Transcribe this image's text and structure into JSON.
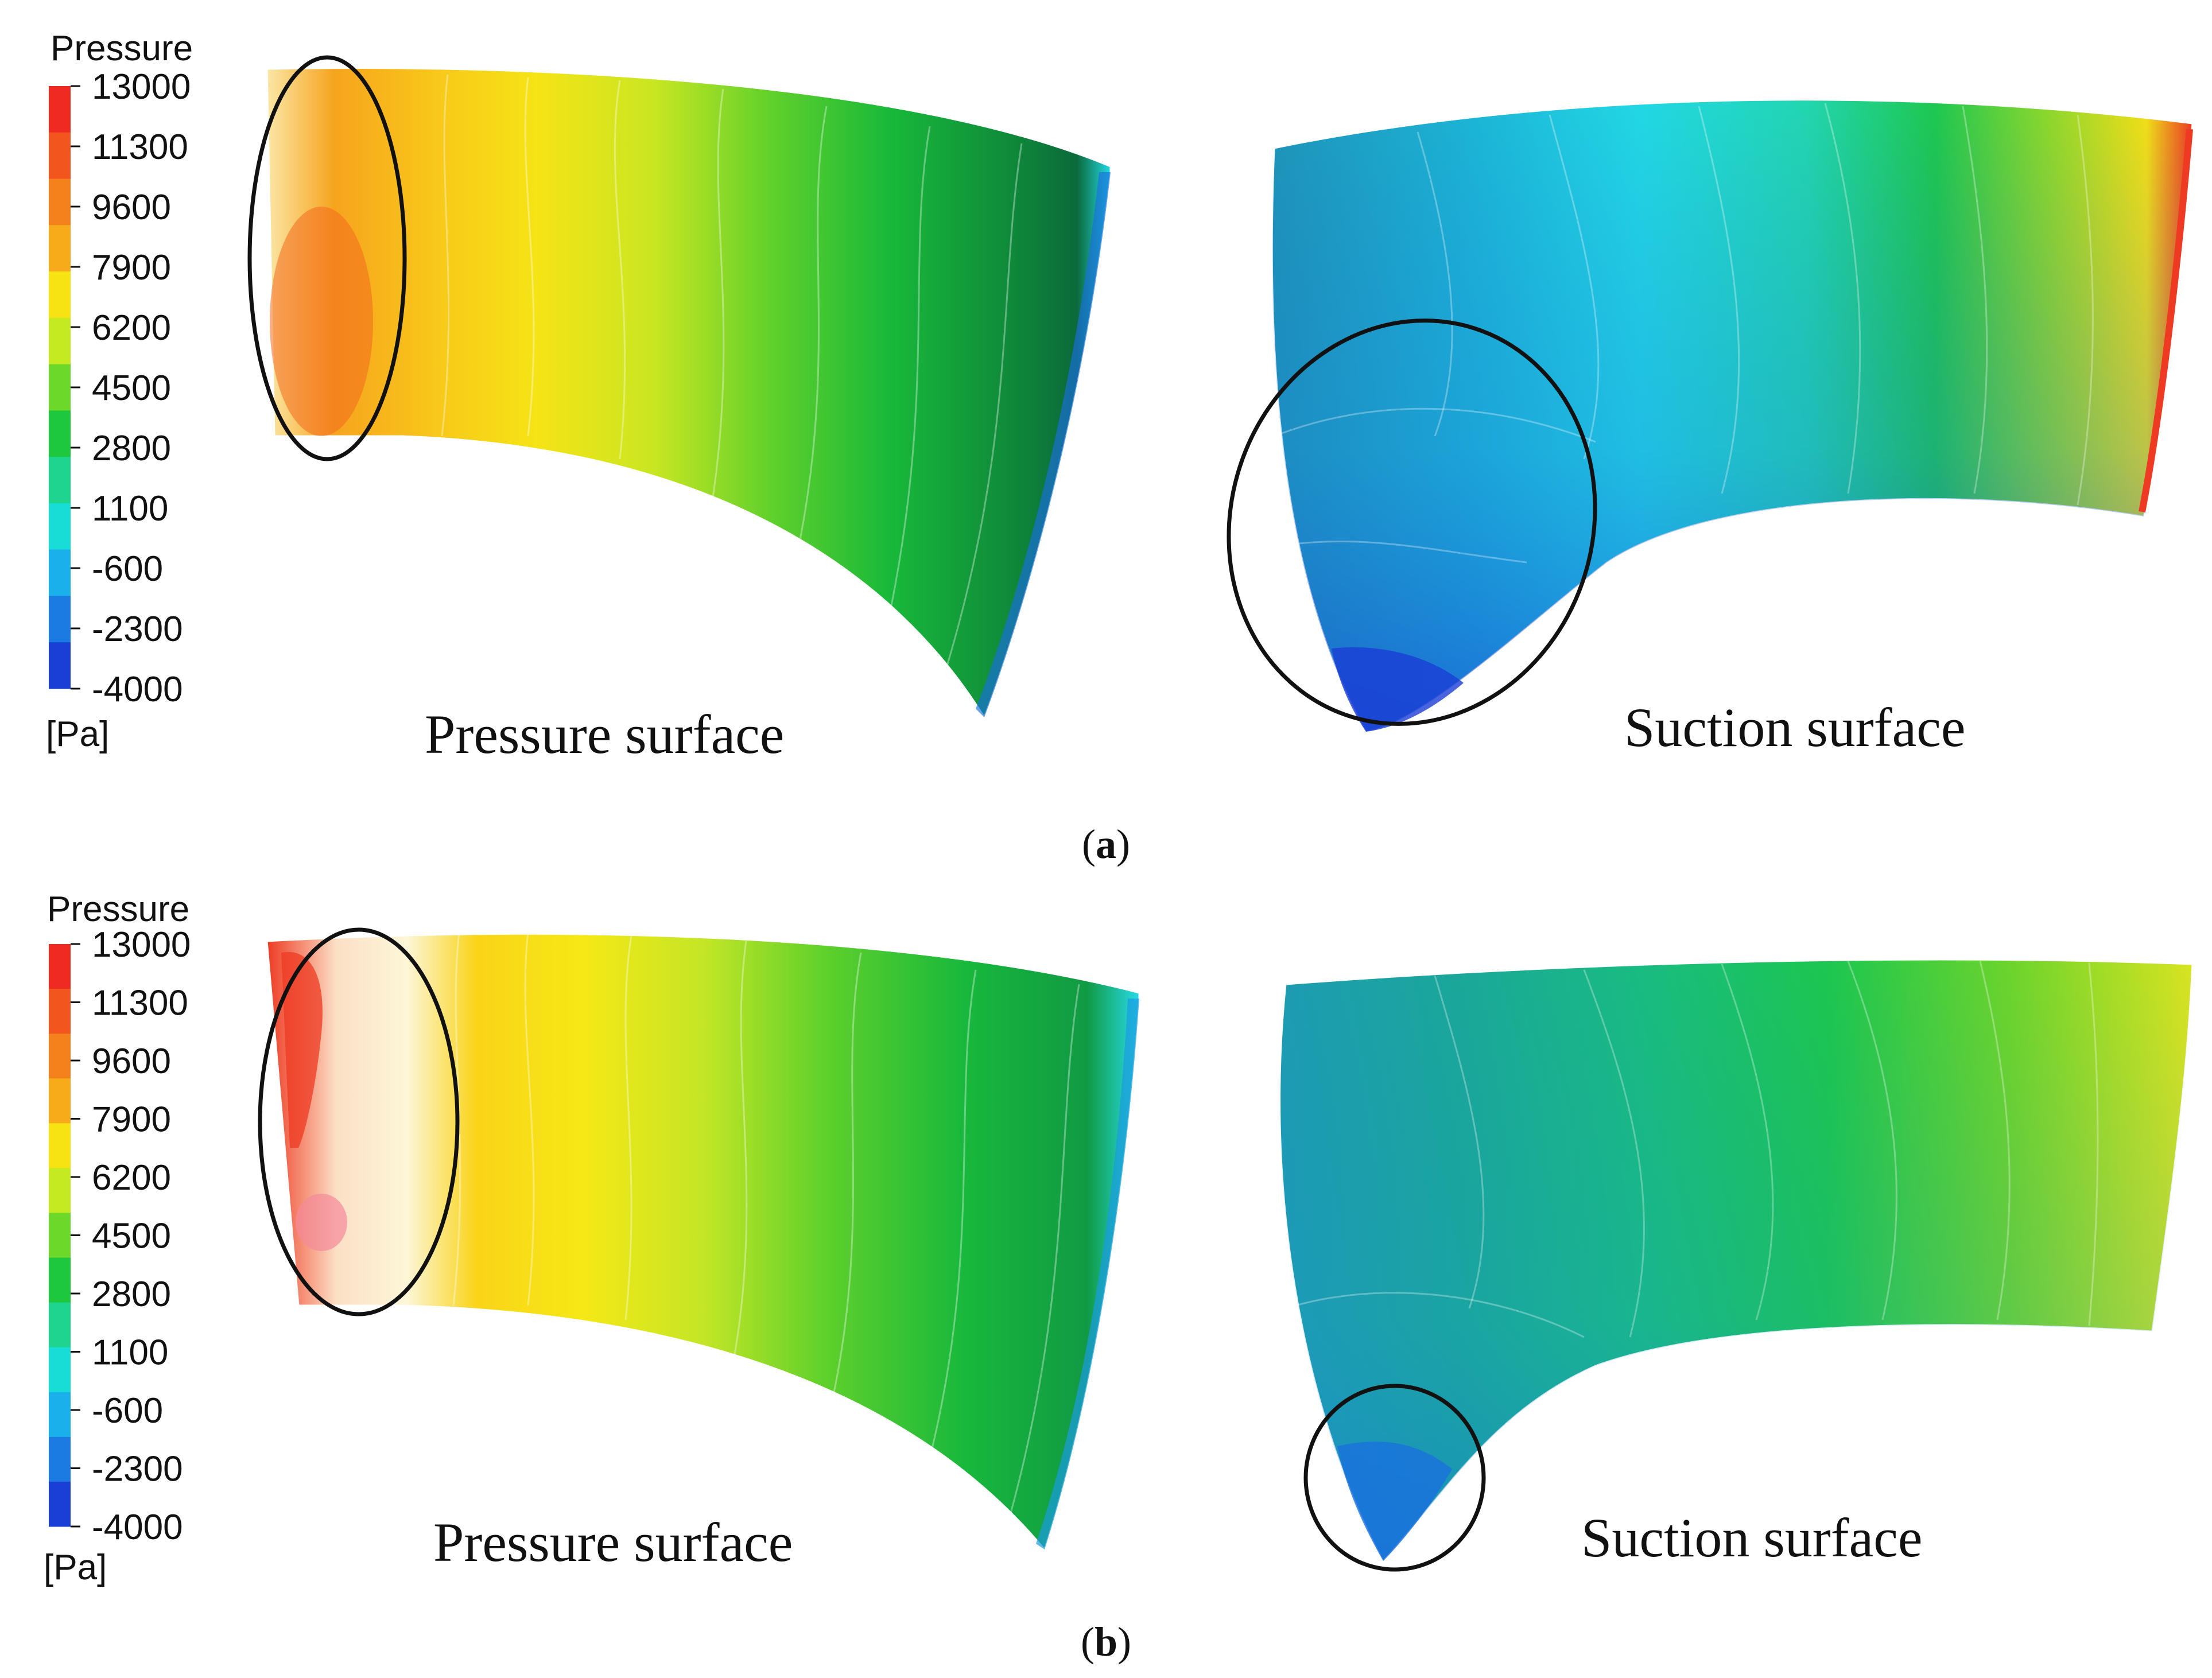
{
  "legend": {
    "title": "Pressure",
    "unit": "[Pa]",
    "ticks": [
      "13000",
      "11300",
      "9600",
      "7900",
      "6200",
      "4500",
      "2800",
      "1100",
      "-600",
      "-2300",
      "-4000"
    ],
    "band_colors": [
      "#ee2a22",
      "#f2561e",
      "#f5811c",
      "#f8ab1a",
      "#f7e314",
      "#c6ea20",
      "#6cd82a",
      "#1ec83c",
      "#1dd58c",
      "#18dcd6",
      "#1ab0ec",
      "#1b7be3",
      "#1a3fd6"
    ]
  },
  "panels": [
    {
      "caption_letter": "a",
      "pressure_label": "Pressure surface",
      "suction_label": "Suction surface"
    },
    {
      "caption_letter": "b",
      "pressure_label": "Pressure surface",
      "suction_label": "Suction surface"
    }
  ]
}
